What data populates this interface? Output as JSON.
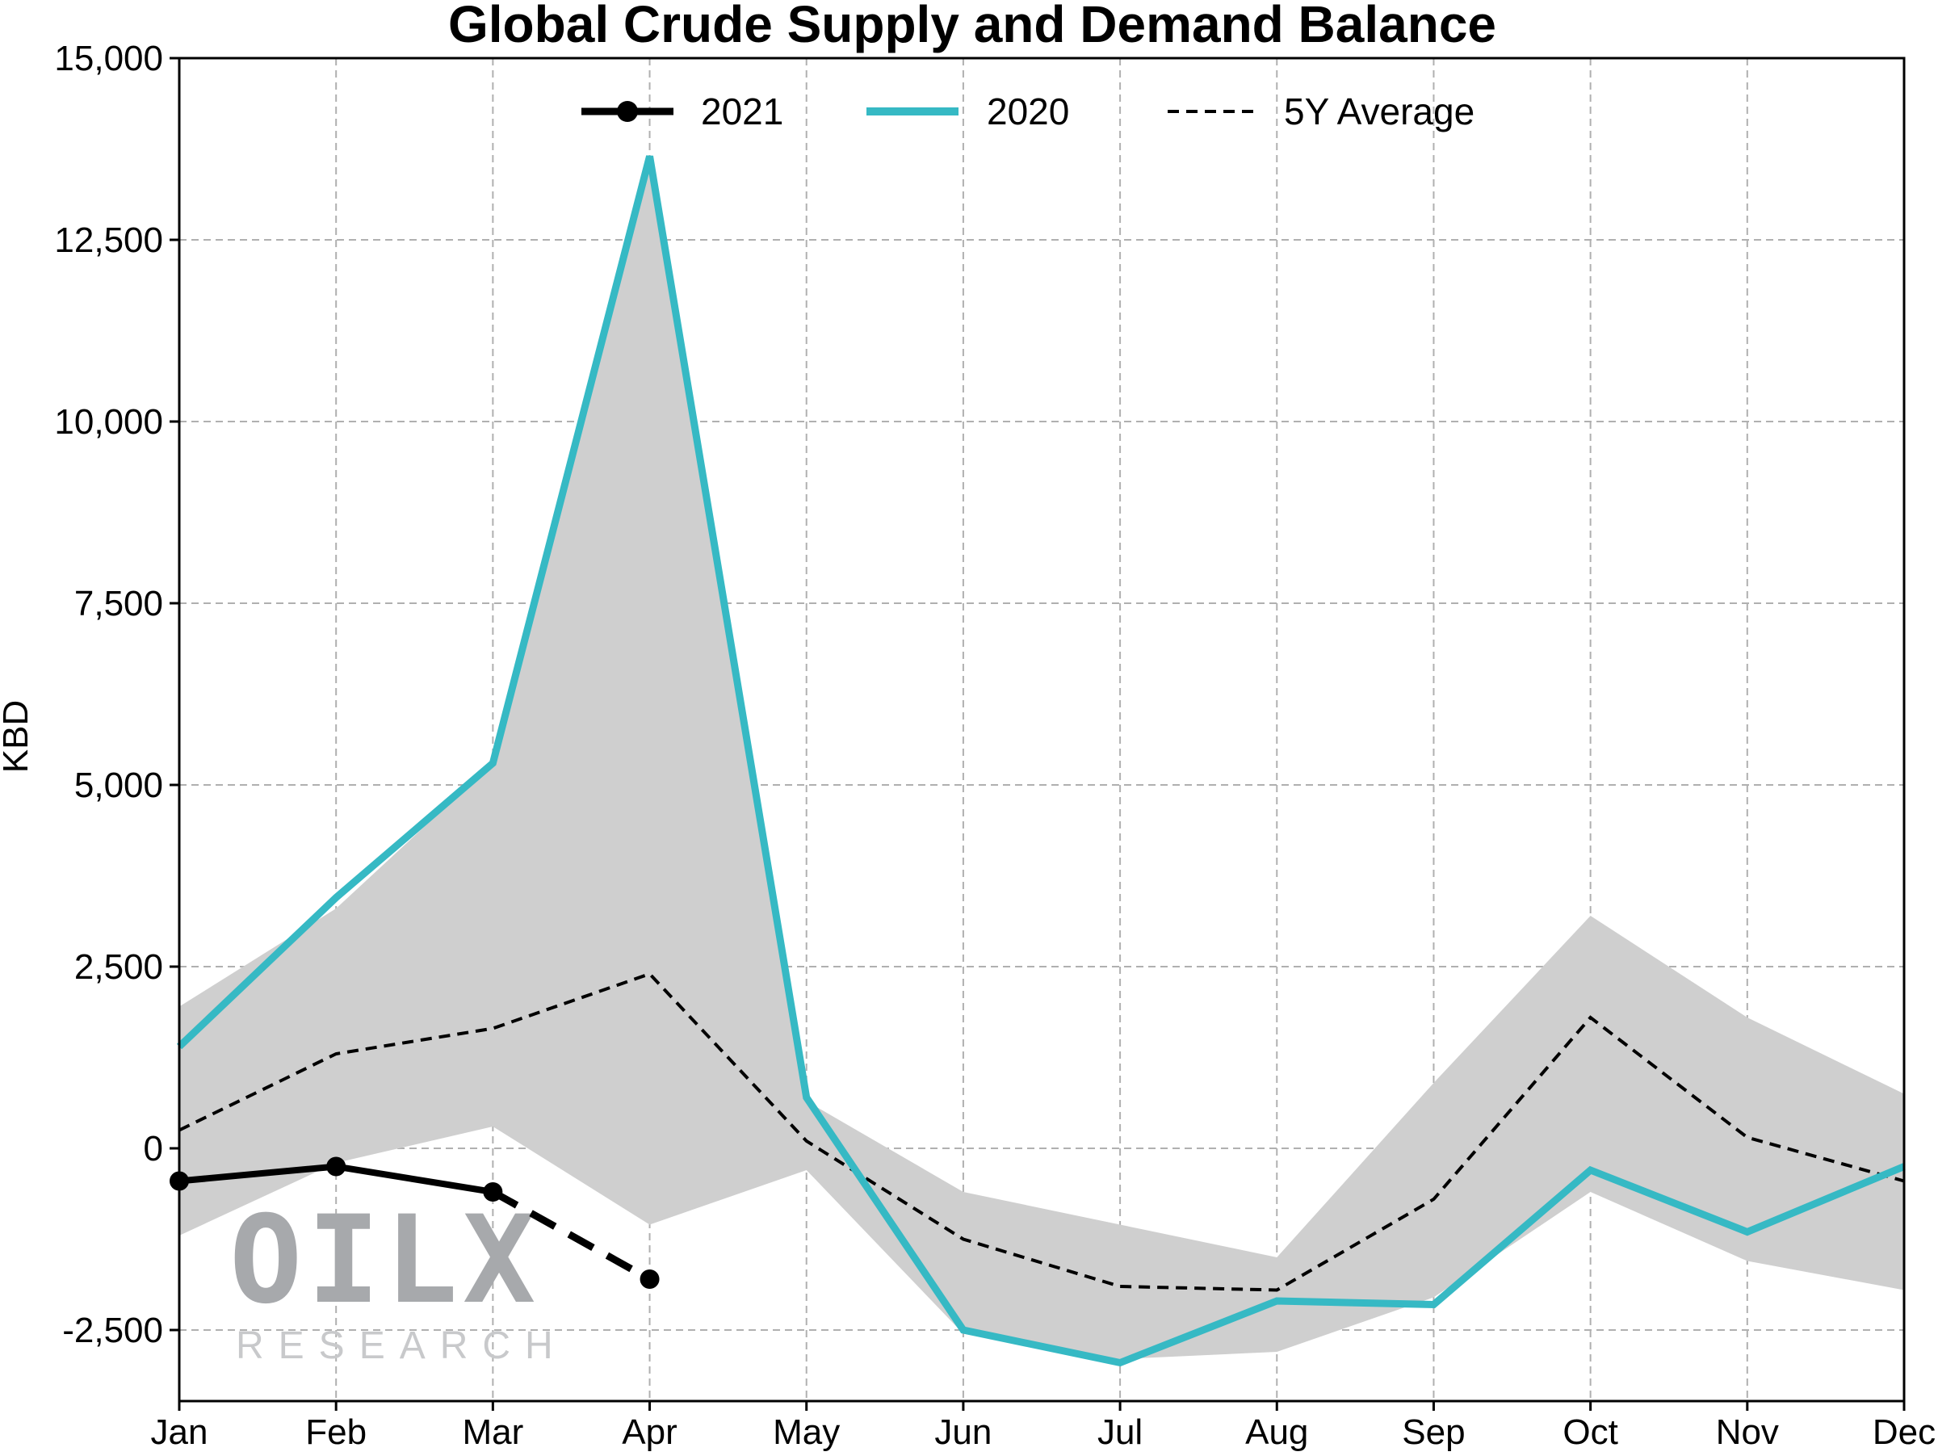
{
  "chart_data": {
    "type": "line",
    "title": "Global Crude Supply and Demand Balance",
    "xlabel": "",
    "ylabel": "KBD",
    "categories": [
      "Jan",
      "Feb",
      "Mar",
      "Apr",
      "May",
      "Jun",
      "Jul",
      "Aug",
      "Sep",
      "Oct",
      "Nov",
      "Dec"
    ],
    "ylim": [
      -3500,
      15000
    ],
    "yticks": [
      -2500,
      0,
      2500,
      5000,
      7500,
      10000,
      12500,
      15000
    ],
    "ytick_labels": [
      "-2,500",
      "0",
      "2,500",
      "5,000",
      "7,500",
      "10,000",
      "12,500",
      "15,000"
    ],
    "grid": true,
    "legend_position": "top-center",
    "series": [
      {
        "name": "2021",
        "color": "#000000",
        "style": "solid-with-markers",
        "values": [
          -450,
          -250,
          -600,
          null,
          null,
          null,
          null,
          null,
          null,
          null,
          null,
          null
        ],
        "projection": {
          "from_index": 2,
          "values": [
            -600,
            -1800
          ],
          "style": "dashed"
        }
      },
      {
        "name": "2020",
        "color": "#36b9c4",
        "style": "solid",
        "values": [
          1400,
          3450,
          5300,
          13650,
          700,
          -2500,
          -2950,
          -2100,
          -2150,
          -300,
          -1150,
          -250
        ]
      },
      {
        "name": "5Y Average",
        "color": "#000000",
        "style": "dashed",
        "values": [
          250,
          1300,
          1650,
          2400,
          100,
          -1250,
          -1900,
          -1950,
          -700,
          1800,
          150,
          -450
        ]
      }
    ],
    "range_band": {
      "color": "#cfcfcf",
      "upper": [
        1950,
        3300,
        5300,
        13500,
        650,
        -600,
        -1050,
        -1500,
        900,
        3200,
        1800,
        750
      ],
      "lower": [
        -1200,
        -200,
        300,
        -1050,
        -300,
        -2550,
        -2900,
        -2800,
        -2050,
        -600,
        -1550,
        -1950
      ]
    }
  },
  "watermark": {
    "brand": "OILX",
    "subtitle": "RESEARCH",
    "color": "#a7a9ac"
  }
}
